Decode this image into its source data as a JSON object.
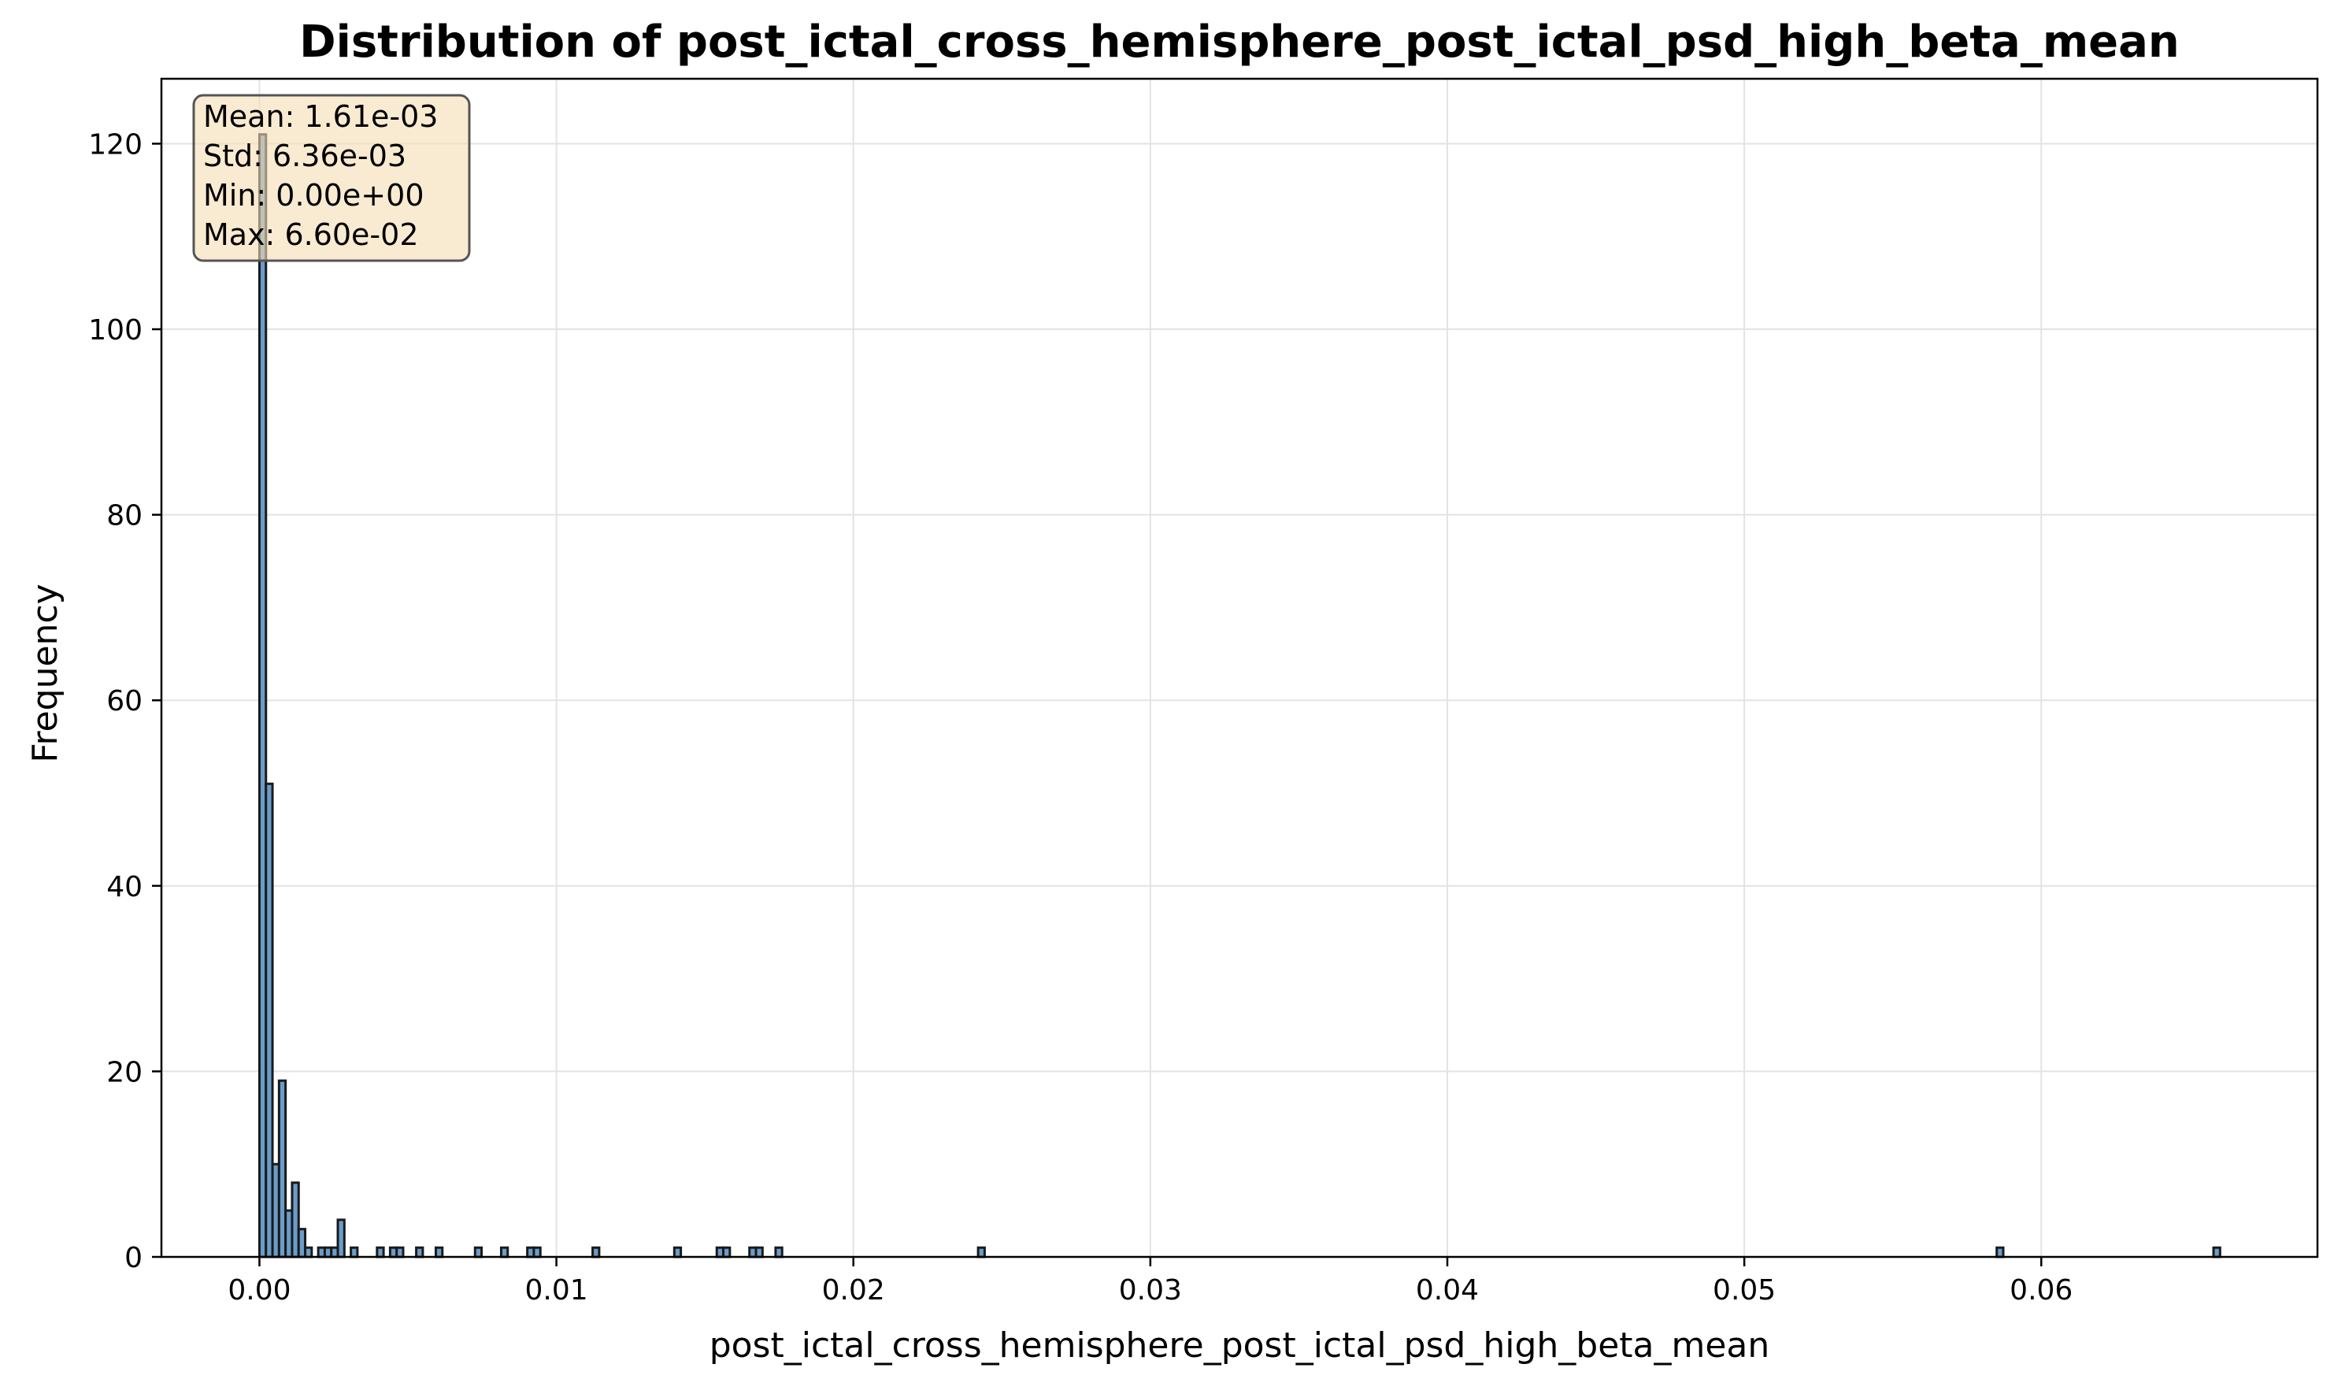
{
  "chart_data": {
    "type": "bar",
    "title": "Distribution of post_ictal_cross_hemisphere_post_ictal_psd_high_beta_mean",
    "xlabel": "post_ictal_cross_hemisphere_post_ictal_psd_high_beta_mean",
    "ylabel": "Frequency",
    "xlim": [
      -0.0033,
      0.0693
    ],
    "ylim": [
      0,
      127
    ],
    "xticks": [
      0.0,
      0.01,
      0.02,
      0.03,
      0.04,
      0.05,
      0.06
    ],
    "xtick_labels": [
      "0.00",
      "0.01",
      "0.02",
      "0.03",
      "0.04",
      "0.05",
      "0.06"
    ],
    "yticks": [
      0,
      20,
      40,
      60,
      80,
      100,
      120
    ],
    "ytick_labels": [
      "0",
      "20",
      "40",
      "60",
      "80",
      "100",
      "120"
    ],
    "grid": true,
    "bin_width": 0.00022,
    "bar_fill": "#6a9cc9",
    "bar_edge": "#1a1a1a",
    "bins": [
      {
        "x": 0.0,
        "count": 121
      },
      {
        "x": 0.00022,
        "count": 51
      },
      {
        "x": 0.00044,
        "count": 10
      },
      {
        "x": 0.00066,
        "count": 19
      },
      {
        "x": 0.00088,
        "count": 5
      },
      {
        "x": 0.0011,
        "count": 8
      },
      {
        "x": 0.00132,
        "count": 3
      },
      {
        "x": 0.00154,
        "count": 1
      },
      {
        "x": 0.00198,
        "count": 1
      },
      {
        "x": 0.0022,
        "count": 1
      },
      {
        "x": 0.00242,
        "count": 1
      },
      {
        "x": 0.00264,
        "count": 4
      },
      {
        "x": 0.00308,
        "count": 1
      },
      {
        "x": 0.00396,
        "count": 1
      },
      {
        "x": 0.0044,
        "count": 1
      },
      {
        "x": 0.00462,
        "count": 1
      },
      {
        "x": 0.00528,
        "count": 1
      },
      {
        "x": 0.00594,
        "count": 1
      },
      {
        "x": 0.00726,
        "count": 1
      },
      {
        "x": 0.00814,
        "count": 1
      },
      {
        "x": 0.00902,
        "count": 1
      },
      {
        "x": 0.00924,
        "count": 1
      },
      {
        "x": 0.01122,
        "count": 1
      },
      {
        "x": 0.01397,
        "count": 1
      },
      {
        "x": 0.0154,
        "count": 1
      },
      {
        "x": 0.01562,
        "count": 1
      },
      {
        "x": 0.0165,
        "count": 1
      },
      {
        "x": 0.01672,
        "count": 1
      },
      {
        "x": 0.01738,
        "count": 1
      },
      {
        "x": 0.0242,
        "count": 1
      },
      {
        "x": 0.0585,
        "count": 1
      },
      {
        "x": 0.0658,
        "count": 1
      }
    ],
    "stats_box": {
      "lines": [
        "Mean: 1.61e-03",
        "Std: 6.36e-03",
        "Min: 0.00e+00",
        "Max: 6.60e-02"
      ],
      "placement": "top-left",
      "fill": "#f5deb3",
      "edge": "#555555"
    }
  }
}
